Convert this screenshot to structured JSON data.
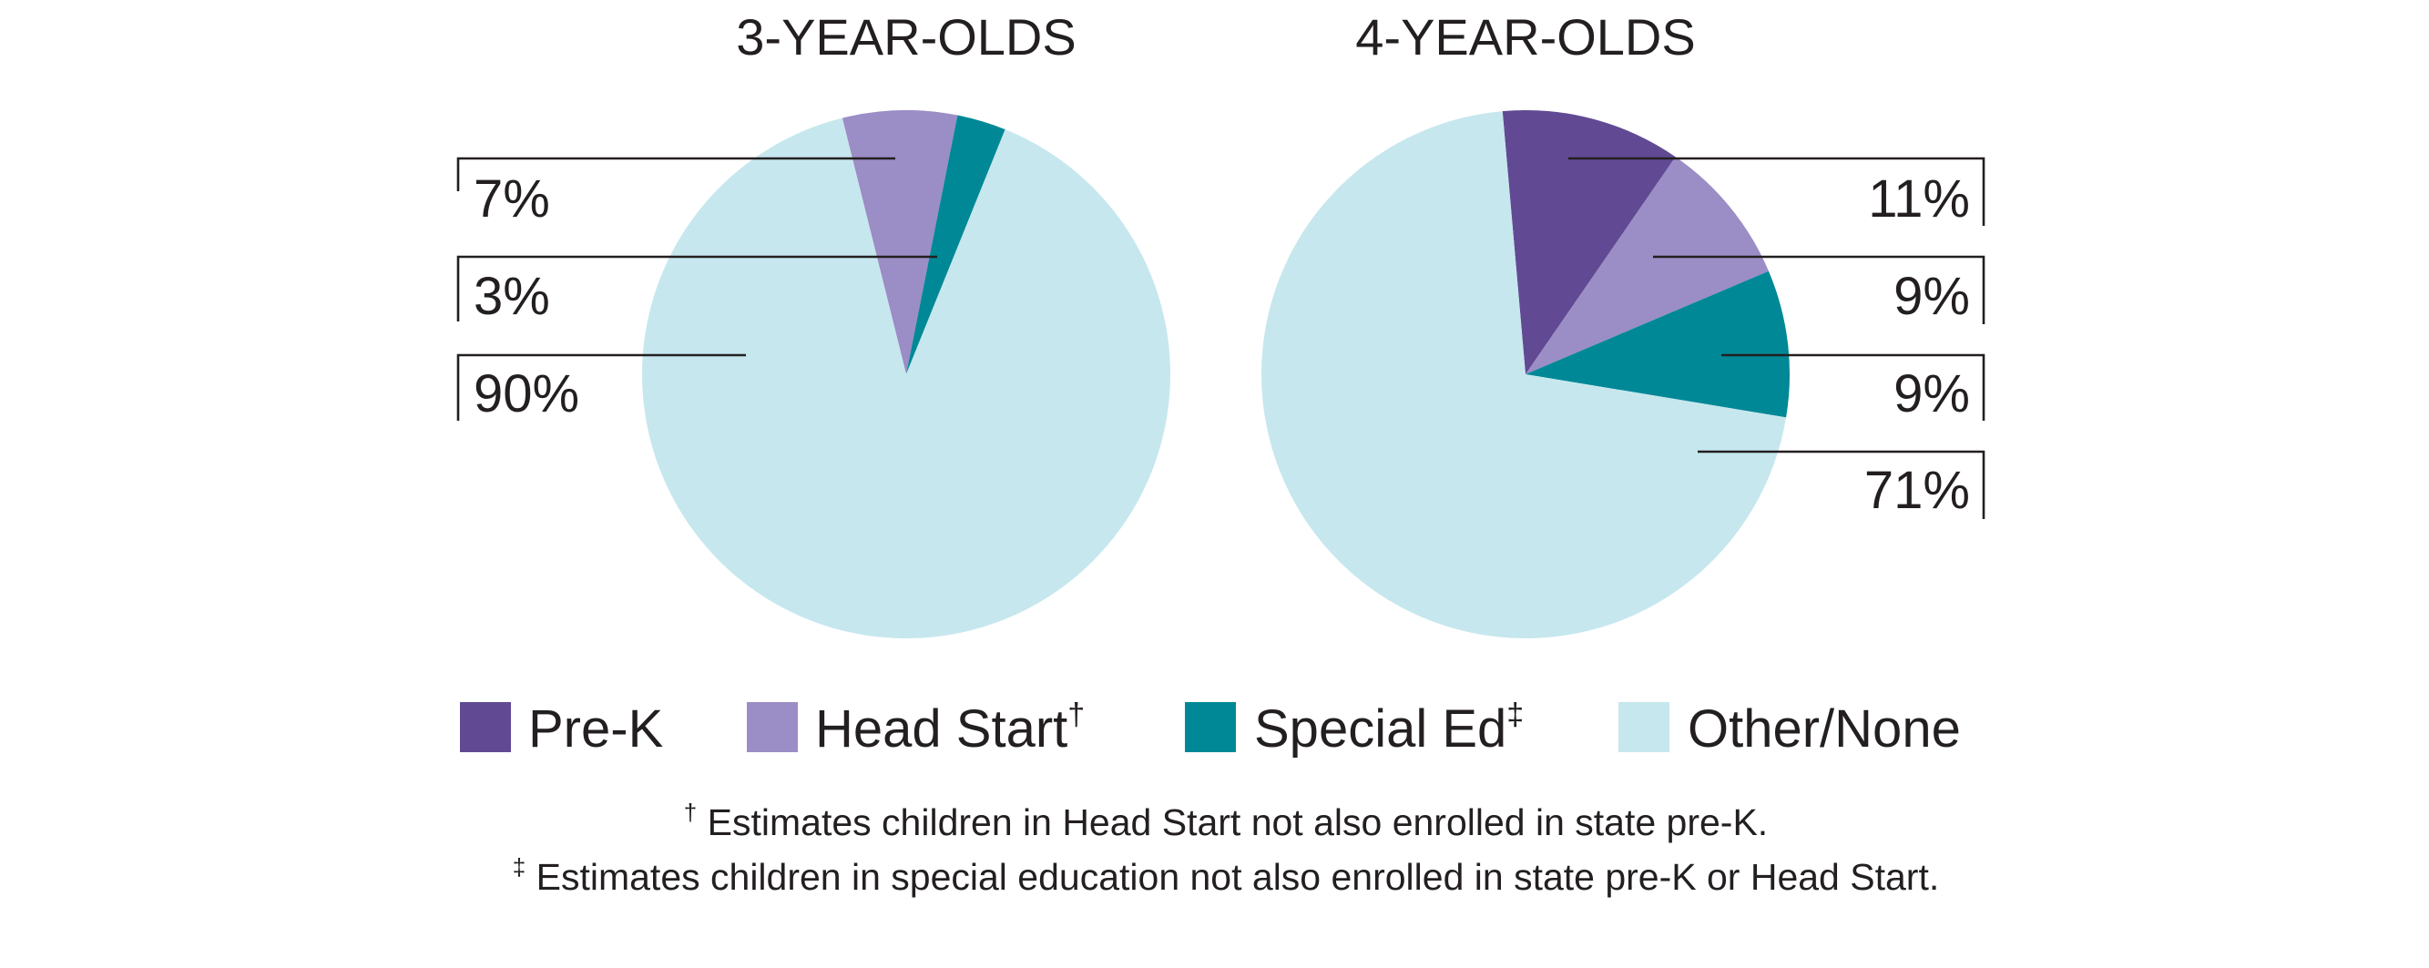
{
  "chart_data": [
    {
      "type": "pie",
      "title": "3-YEAR-OLDS",
      "slices": [
        {
          "label": "Pre-K",
          "value": 0,
          "value_label": ""
        },
        {
          "label": "Head Start",
          "value": 7,
          "value_label": "7%"
        },
        {
          "label": "Special Ed",
          "value": 3,
          "value_label": "3%"
        },
        {
          "label": "Other/None",
          "value": 90,
          "value_label": "90%"
        }
      ],
      "legend": "bottom"
    },
    {
      "type": "pie",
      "title": "4-YEAR-OLDS",
      "slices": [
        {
          "label": "Pre-K",
          "value": 11,
          "value_label": "11%"
        },
        {
          "label": "Head Start",
          "value": 9,
          "value_label": "9%"
        },
        {
          "label": "Special Ed",
          "value": 9,
          "value_label": "9%"
        },
        {
          "label": "Other/None",
          "value": 71,
          "value_label": "71%"
        }
      ],
      "legend": "bottom"
    }
  ],
  "colors": {
    "Pre-K": "#614a93",
    "Head Start": "#9b8dc5",
    "Special Ed": "#008896",
    "Other/None": "#c6e7ee"
  },
  "legend": [
    {
      "label": "Pre-K",
      "mark": ""
    },
    {
      "label": "Head Start",
      "mark": "†"
    },
    {
      "label": "Special Ed",
      "mark": "‡"
    },
    {
      "label": "Other/None",
      "mark": ""
    }
  ],
  "footnotes": [
    {
      "mark": "†",
      "text": " Estimates children in Head Start not also enrolled in state pre-K."
    },
    {
      "mark": "‡",
      "text": " Estimates children in special education not also enrolled in state pre-K or Head Start."
    }
  ]
}
